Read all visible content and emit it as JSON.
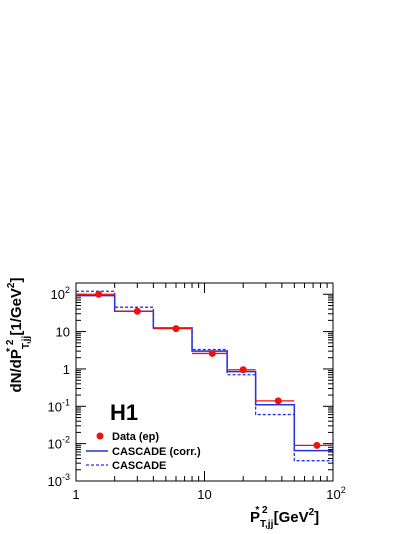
{
  "chart_data": {
    "type": "histogram",
    "experiment_label": "H1",
    "xlabel": {
      "main": "P",
      "sub": "T,jj",
      "sup": "* 2",
      "unit_open": "[GeV",
      "unit_sup": "2",
      "unit_close": "]"
    },
    "ylabel": {
      "prefix": "dN/dP",
      "sub": "T,jj",
      "sup": "* 2",
      "unit_open": "[1/GeV",
      "unit_sup": "2",
      "unit_close": "]"
    },
    "x_scale": "log",
    "y_scale": "log",
    "xlim": [
      1,
      100
    ],
    "ylim": [
      0.001,
      200
    ],
    "x_ticks": [
      {
        "value": 1,
        "label": "1",
        "exp": ""
      },
      {
        "value": 10,
        "label": "10",
        "exp": ""
      },
      {
        "value": 100,
        "label": "10",
        "exp": "2"
      }
    ],
    "y_ticks": [
      {
        "value": 0.001,
        "base": "10",
        "exp": "-3"
      },
      {
        "value": 0.01,
        "base": "10",
        "exp": "-2"
      },
      {
        "value": 0.1,
        "base": "10",
        "exp": "-1"
      },
      {
        "value": 1,
        "base": "1",
        "exp": ""
      },
      {
        "value": 10,
        "base": "10",
        "exp": ""
      },
      {
        "value": 100,
        "base": "10",
        "exp": "2"
      }
    ],
    "bin_edges": [
      1,
      2,
      4,
      8,
      15,
      25,
      50,
      100
    ],
    "series": [
      {
        "name": "Data (ep)",
        "kind": "points",
        "color": "#ee1111",
        "x": [
          1.5,
          3,
          6,
          11.5,
          20,
          37.5,
          75
        ],
        "y": [
          100,
          35,
          12,
          2.6,
          0.95,
          0.14,
          0.009
        ],
        "yerr_low": [
          8,
          3,
          1,
          0.3,
          0.1,
          0.02,
          0.0015
        ],
        "yerr_high": [
          8,
          3,
          1,
          0.3,
          0.1,
          0.02,
          0.0015
        ]
      },
      {
        "name": "CASCADE (corr.)",
        "kind": "step",
        "style": "solid",
        "color": "#2233dd",
        "values": [
          92,
          35,
          12.5,
          3.0,
          0.85,
          0.11,
          0.0065
        ]
      },
      {
        "name": "CASCADE",
        "kind": "step",
        "style": "dashed",
        "color": "#2233dd",
        "values": [
          120,
          45,
          12.5,
          3.3,
          0.7,
          0.06,
          0.0035
        ]
      }
    ],
    "legend_position": "bottom-left"
  }
}
